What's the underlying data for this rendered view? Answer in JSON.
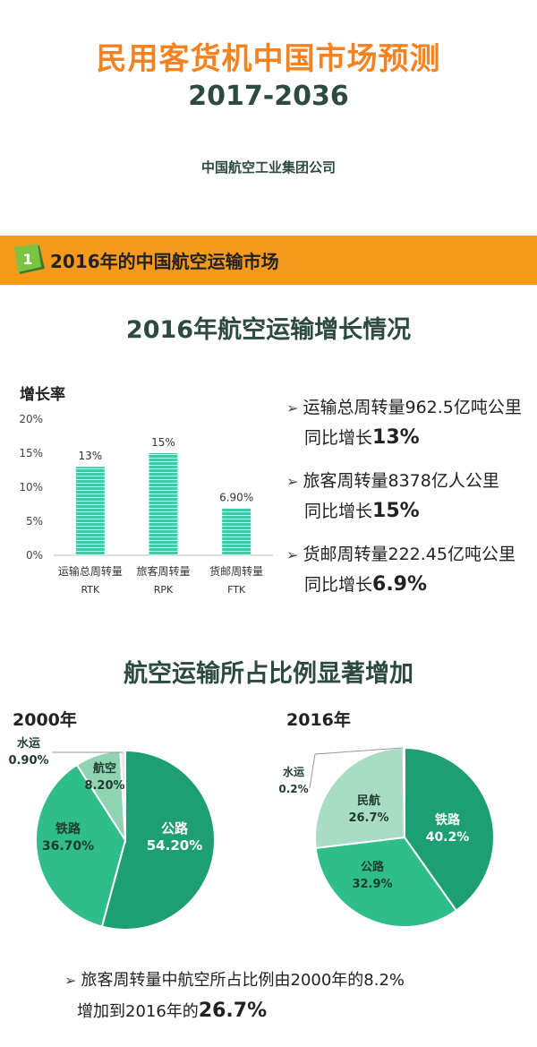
{
  "header": {
    "title": "民用客货机中国市场预测",
    "years": "2017-2036",
    "company": "中国航空工业集团公司"
  },
  "banner": {
    "number": "1",
    "text": "2016年的中国航空运输市场"
  },
  "section1": {
    "title": "2016年航空运输增长情况"
  },
  "section2": {
    "title": "航空运输所占比例显著增加"
  },
  "colors": {
    "orange": "#f58220",
    "banner": "#f79a1c",
    "dark_green": "#2d4a3e",
    "bar": "#3fc9a6",
    "pie_dark": "#1e9e73",
    "pie_mid": "#2fbe8a",
    "pie_light": "#a8dcc4"
  },
  "bullets": [
    {
      "line1": "运输总周转量962.5亿吨公里",
      "line2_prefix": "同比增长",
      "line2_value": "13%"
    },
    {
      "line1": "旅客周转量8378亿人公里",
      "line2_prefix": "同比增长",
      "line2_value": "15%"
    },
    {
      "line1": "货邮周转量222.45亿吨公里",
      "line2_prefix": "同比增长",
      "line2_value": "6.9%"
    }
  ],
  "bottom_note": {
    "line1": "旅客周转量中航空所占比例由2000年的8.2%",
    "line2_prefix": "增加到2016年的",
    "line2_value": "26.7%"
  },
  "chart_data": [
    {
      "type": "bar",
      "ylabel": "增长率",
      "ylim": [
        0,
        20
      ],
      "yticks": [
        "0%",
        "5%",
        "10%",
        "15%",
        "20%"
      ],
      "categories": [
        "运输总周转量",
        "旅客周转量",
        "货邮周转量"
      ],
      "category_codes": [
        "RTK",
        "RPK",
        "FTK"
      ],
      "values": [
        13,
        15,
        6.9
      ],
      "data_labels": [
        "13%",
        "15%",
        "6.90%"
      ]
    },
    {
      "type": "pie",
      "title": "2000年",
      "slices": [
        {
          "label": "公路",
          "value": 54.2,
          "display": "54.20%"
        },
        {
          "label": "铁路",
          "value": 36.7,
          "display": "36.70%"
        },
        {
          "label": "航空",
          "value": 8.2,
          "display": "8.20%"
        },
        {
          "label": "水运",
          "value": 0.9,
          "display": "0.90%"
        }
      ]
    },
    {
      "type": "pie",
      "title": "2016年",
      "slices": [
        {
          "label": "铁路",
          "value": 40.2,
          "display": "40.2%"
        },
        {
          "label": "公路",
          "value": 32.9,
          "display": "32.9%"
        },
        {
          "label": "民航",
          "value": 26.7,
          "display": "26.7%"
        },
        {
          "label": "水运",
          "value": 0.2,
          "display": "0.2%"
        }
      ]
    }
  ]
}
